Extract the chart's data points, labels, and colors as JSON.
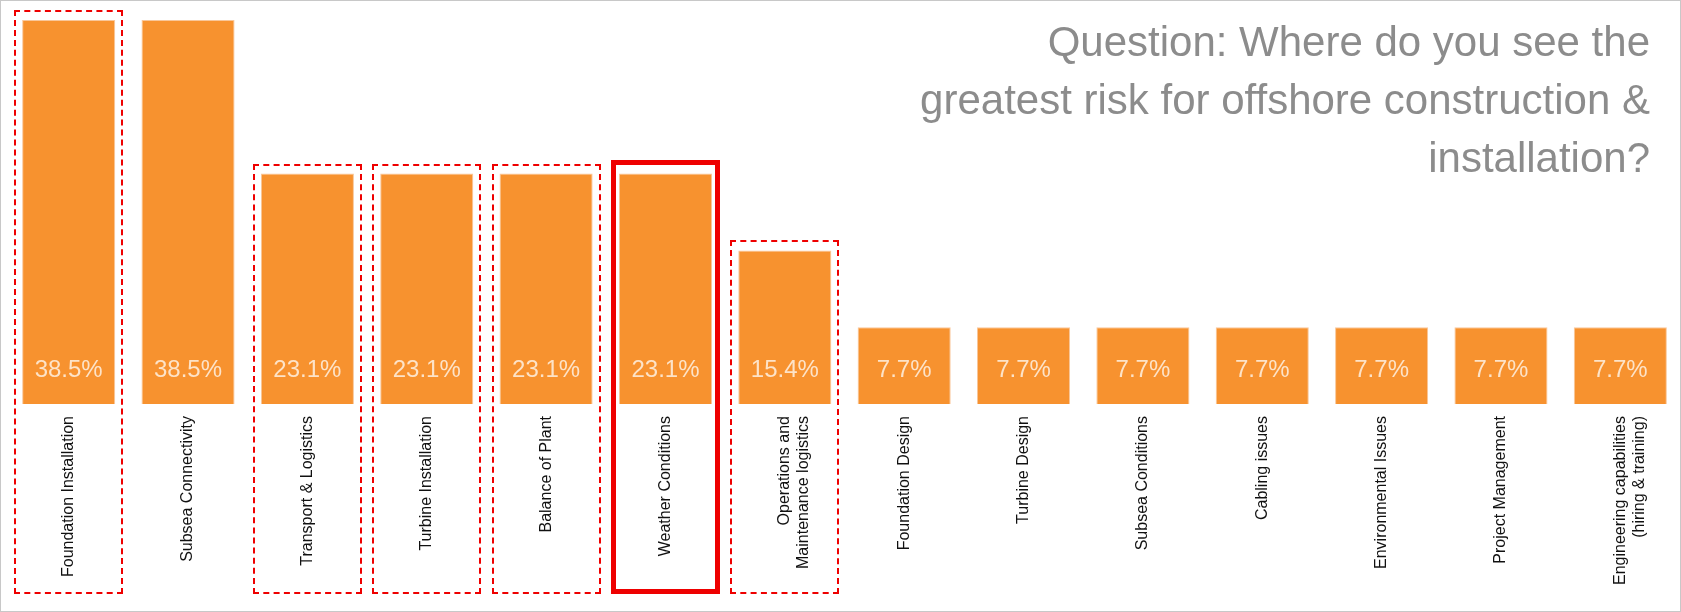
{
  "chart_data": {
    "type": "bar",
    "title": "Question: Where do you see the greatest risk for offshore construction & installation?",
    "categories": [
      "Foundation Installation",
      "Subsea Connectivity",
      "Transport & Logistics",
      "Turbine Installation",
      "Balance of Plant",
      "Weather Conditions",
      "Operations and Maintenance logistics",
      "Foundation Design",
      "Turbine Design",
      "Subsea Conditions",
      "Cabling issues",
      "Environmental Issues",
      "Project Management",
      "Engineering capabilities (hiring & training)"
    ],
    "values": [
      38.5,
      38.5,
      23.1,
      23.1,
      23.1,
      23.1,
      15.4,
      7.7,
      7.7,
      7.7,
      7.7,
      7.7,
      7.7,
      7.7
    ],
    "value_labels": [
      "38.5%",
      "38.5%",
      "23.1%",
      "23.1%",
      "23.1%",
      "23.1%",
      "15.4%",
      "7.7%",
      "7.7%",
      "7.7%",
      "7.7%",
      "7.7%",
      "7.7%",
      "7.7%"
    ],
    "color": "#f7922f",
    "legend": false,
    "grid": false,
    "tick_labels": "x"
  }
}
